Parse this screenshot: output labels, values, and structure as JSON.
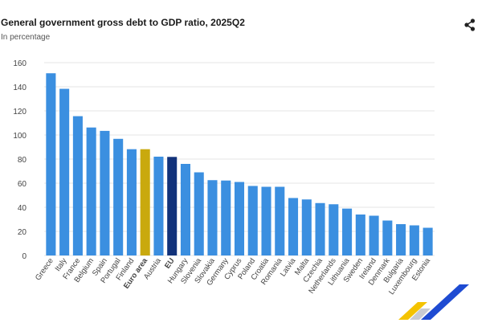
{
  "header": {
    "title": "General government gross debt to GDP ratio, 2025Q2",
    "subtitle": "In percentage"
  },
  "icons": {
    "share": "share-icon",
    "logo": "eurostat-logo-icon"
  },
  "colors": {
    "bar": "#3b8fe0",
    "euro_area": "#c9a90e",
    "eu": "#12327a",
    "grid": "#e4e4e4",
    "axis_text": "#444444",
    "logo_yellow": "#f4c300",
    "logo_blue": "#1e4bd2"
  },
  "chart_data": {
    "type": "bar",
    "title": "General government gross debt to GDP ratio, 2025Q2",
    "subtitle": "In percentage",
    "xlabel": "",
    "ylabel": "",
    "ylim": [
      0,
      160
    ],
    "yticks": [
      0,
      20,
      40,
      60,
      80,
      100,
      120,
      140,
      160
    ],
    "grid": true,
    "legend": "none",
    "categories": [
      "Greece",
      "Italy",
      "France",
      "Belgium",
      "Spain",
      "Portugal",
      "Finland",
      "Euro area",
      "Austria",
      "EU",
      "Hungary",
      "Slovenia",
      "Slovakia",
      "Germany",
      "Cyprus",
      "Poland",
      "Croatia",
      "Romania",
      "Latvia",
      "Malta",
      "Czechia",
      "Netherlands",
      "Lithuania",
      "Sweden",
      "Ireland",
      "Denmark",
      "Bulgaria",
      "Luxembourg",
      "Estonia"
    ],
    "values": [
      151.2,
      138.3,
      115.6,
      106.2,
      103.4,
      96.8,
      88.2,
      88.2,
      82.0,
      81.8,
      76.0,
      69.0,
      62.5,
      62.2,
      61.0,
      57.7,
      57.0,
      57.0,
      47.7,
      46.5,
      43.5,
      42.5,
      38.9,
      34.0,
      33.0,
      29.0,
      26.0,
      25.0,
      23.0
    ],
    "highlight": {
      "Euro area": "euro_area",
      "EU": "eu"
    },
    "bold_categories": [
      "Euro area",
      "EU"
    ]
  }
}
